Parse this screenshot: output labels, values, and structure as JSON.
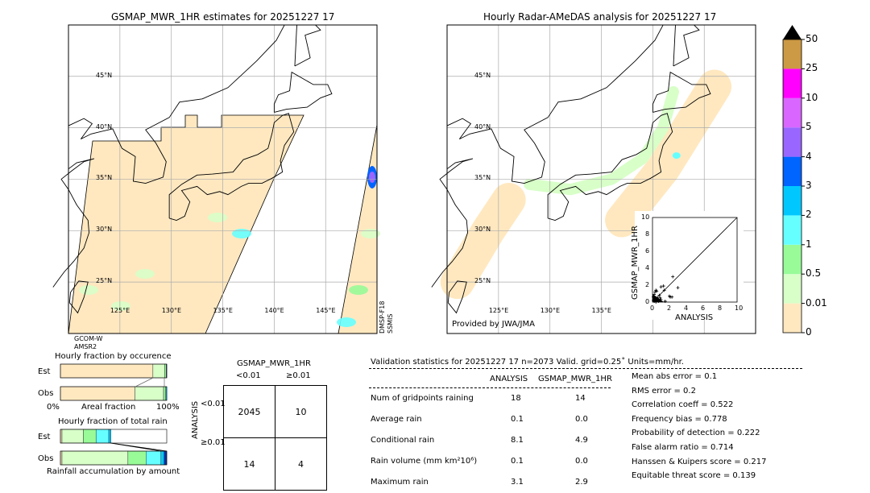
{
  "left_map": {
    "title": "GSMAP_MWR_1HR estimates for 20251227 17",
    "lat_labels": [
      "45°N",
      "40°N",
      "35°N",
      "30°N",
      "25°N"
    ],
    "lon_labels": [
      "125°E",
      "130°E",
      "135°E",
      "140°E",
      "145°E"
    ],
    "sensor_left": [
      "GCOM-W",
      "AMSR2"
    ],
    "sensor_right": [
      "DMSP-F18",
      "SSMIS"
    ]
  },
  "right_map": {
    "title": "Hourly Radar-AMeDAS analysis for 20251227 17",
    "lat_labels": [
      "45°N",
      "40°N",
      "35°N",
      "30°N",
      "25°N"
    ],
    "lon_labels": [
      "125°E",
      "130°E",
      "135°E"
    ],
    "credit": "Provided by JWA/JMA"
  },
  "colors": {
    "no_rain": "#ffe8c0",
    "light": "#d8ffc8",
    "green": "#98fb98",
    "cyan": "#66ffff",
    "sky": "#00c8ff",
    "blue": "#0064ff",
    "violet": "#9966ff",
    "lilac": "#d966ff",
    "magenta": "#ff00ff",
    "brown": "#cc9944",
    "dark_blue": "#0033aa"
  },
  "chart_data": [
    {
      "type": "colorbar",
      "tick_labels": [
        "0",
        "0.01",
        "0.5",
        "1",
        "2",
        "3",
        "4",
        "5",
        "10",
        "25",
        "50"
      ],
      "colors": [
        "#ffe8c0",
        "#d8ffc8",
        "#98fb98",
        "#66ffff",
        "#00c8ff",
        "#0064ff",
        "#9966ff",
        "#d966ff",
        "#ff00ff",
        "#cc9944"
      ],
      "extend": "max"
    },
    {
      "type": "scatter",
      "xlabel": "ANALYSIS",
      "ylabel": "GSMAP_MWR_1HR",
      "xlim": [
        0,
        10
      ],
      "ylim": [
        0,
        10
      ],
      "ticks": [
        "0",
        "2",
        "4",
        "6",
        "8",
        "10"
      ],
      "diagonal": true,
      "points": [
        [
          2.4,
          3.0
        ],
        [
          3.0,
          1.7
        ],
        [
          1.0,
          1.8
        ],
        [
          1.3,
          1.9
        ],
        [
          2.0,
          0.7
        ],
        [
          2.1,
          0.6
        ],
        [
          2.3,
          0.6
        ],
        [
          0.4,
          1.4
        ],
        [
          0.3,
          1.2
        ],
        [
          0.5,
          1.3
        ],
        [
          1.4,
          1.4
        ],
        [
          0.8,
          0.8
        ],
        [
          0.6,
          0.5
        ],
        [
          0.2,
          0.9
        ],
        [
          0.1,
          0.6
        ],
        [
          0.3,
          0.3
        ],
        [
          0.2,
          0.1
        ],
        [
          0.5,
          0.2
        ],
        [
          1.0,
          0.3
        ],
        [
          0.7,
          0.1
        ],
        [
          0.1,
          0.2
        ],
        [
          0.4,
          0.0
        ],
        [
          1.5,
          0.1
        ],
        [
          0.9,
          0.5
        ]
      ]
    },
    {
      "type": "bar",
      "title": "Hourly fraction by occurence",
      "xlabel": "Areal fraction",
      "x_ticks": [
        "0%",
        "100%"
      ],
      "categories": [
        "Est",
        "Obs"
      ],
      "series": [
        {
          "values": [
            0.87,
            0.7
          ],
          "color": "#ffe8c0"
        },
        {
          "values": [
            0.11,
            0.27
          ],
          "color": "#d8ffc8"
        },
        {
          "values": [
            0.015,
            0.02
          ],
          "color": "#98fb98"
        },
        {
          "values": [
            0.005,
            0.01
          ],
          "color": "#00c8ff"
        }
      ]
    },
    {
      "type": "bar",
      "title": "Hourly fraction of total rain",
      "xlabel": "Rainfall accumulation by amount",
      "categories": [
        "Est",
        "Obs"
      ],
      "series": [
        {
          "values": [
            0.015,
            0.015
          ],
          "color": "#ffe8c0"
        },
        {
          "values": [
            0.2,
            0.62
          ],
          "color": "#d8ffc8"
        },
        {
          "values": [
            0.12,
            0.17
          ],
          "color": "#98fb98"
        },
        {
          "values": [
            0.12,
            0.14
          ],
          "color": "#66ffff"
        },
        {
          "values": [
            0.02,
            0.03
          ],
          "color": "#00c8ff"
        },
        {
          "values": [
            0.0,
            0.025
          ],
          "color": "#0033aa"
        }
      ]
    },
    {
      "type": "table",
      "title": "GSMAP_MWR_1HR",
      "col_labels": [
        "<0.01",
        "≥0.01"
      ],
      "row_title": "ANALYSIS",
      "row_labels": [
        "<0.01",
        "≥0.01"
      ],
      "cells": [
        [
          "2045",
          "10"
        ],
        [
          "14",
          "4"
        ]
      ]
    }
  ],
  "stats": {
    "header": "Validation statistics for 20251227 17  n=2073 Valid. grid=0.25˚ Units=mm/hr.",
    "col_headers": [
      "ANALYSIS",
      "GSMAP_MWR_1HR"
    ],
    "rows": [
      {
        "label": "Num of gridpoints raining",
        "a": "18",
        "b": "14"
      },
      {
        "label": "Average rain",
        "a": "0.1",
        "b": "0.0"
      },
      {
        "label": "Conditional rain",
        "a": "8.1",
        "b": "4.9"
      },
      {
        "label": "Rain volume (mm km²10⁶)",
        "a": "0.1",
        "b": "0.0"
      },
      {
        "label": "Maximum rain",
        "a": "3.1",
        "b": "2.9"
      }
    ],
    "scores": [
      "Mean abs error =    0.1",
      "RMS error =    0.2",
      "Correlation coeff =  0.522",
      "Frequency bias =  0.778",
      "Probability of detection =  0.222",
      "False alarm ratio =  0.714",
      "Hanssen & Kuipers score =  0.217",
      "Equitable threat score =  0.139"
    ]
  }
}
